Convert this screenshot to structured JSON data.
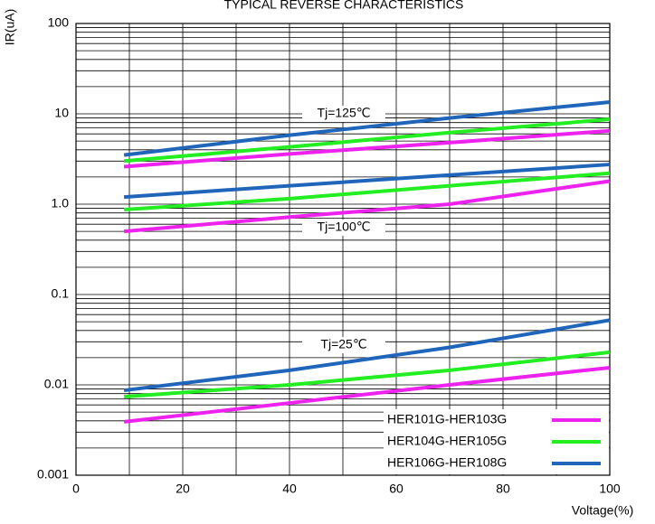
{
  "chart_data": {
    "type": "line",
    "title": "TYPICAL REVERSE CHARACTERISTICS",
    "y_label": "IR(uA)",
    "x_label": "Voltage(%)",
    "log_y": true,
    "grid": true,
    "xlim": [
      0,
      100
    ],
    "xticks": [
      0,
      20,
      40,
      60,
      80,
      100
    ],
    "x_minor_ticks": [
      10,
      30,
      50,
      70,
      90
    ],
    "ylim": [
      0.001,
      100
    ],
    "yticks": [
      100,
      10,
      {
        "value": 1,
        "label": "1.0"
      },
      0.1,
      0.01,
      0.001
    ],
    "legend": "lower right",
    "annotations": [
      "Tj=125℃",
      "Tj=100℃",
      "Tj=25℃"
    ],
    "x": [
      9,
      40,
      70,
      100
    ],
    "series": [
      {
        "name": "HER101G-HER103G",
        "color": "#ee22ee",
        "values": [
          [
            2.6,
            3.6,
            4.8,
            6.5
          ],
          [
            0.5,
            0.72,
            1.0,
            1.8
          ],
          [
            0.0039,
            0.0063,
            0.01,
            0.0155
          ]
        ]
      },
      {
        "name": "HER104G-HER105G",
        "color": "#22ee22",
        "values": [
          [
            3.0,
            4.3,
            6.2,
            8.7
          ],
          [
            0.87,
            1.15,
            1.6,
            2.2
          ],
          [
            0.0074,
            0.01,
            0.0145,
            0.023
          ]
        ]
      },
      {
        "name": "HER106G-HER108G",
        "color": "#1f66bb",
        "values": [
          [
            3.5,
            5.8,
            9.0,
            13.5
          ],
          [
            1.2,
            1.6,
            2.1,
            2.75
          ],
          [
            0.0087,
            0.0145,
            0.026,
            0.052
          ]
        ]
      }
    ]
  }
}
